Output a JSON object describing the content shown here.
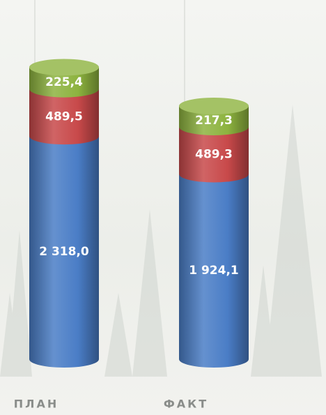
{
  "chart_data": {
    "type": "bar",
    "stacked": true,
    "categories": [
      "ПЛАН",
      "ФАКТ"
    ],
    "series": [
      {
        "color": "#4a7dc6",
        "values": [
          2318.0,
          1924.1
        ],
        "value_labels": [
          "2 318,0",
          "1 924,1"
        ]
      },
      {
        "color": "#c8494a",
        "values": [
          489.5,
          489.3
        ],
        "value_labels": [
          "489,5",
          "489,3"
        ]
      },
      {
        "color": "#8db33f",
        "values": [
          225.4,
          217.3
        ],
        "value_labels": [
          "225,4",
          "217,3"
        ]
      }
    ]
  }
}
